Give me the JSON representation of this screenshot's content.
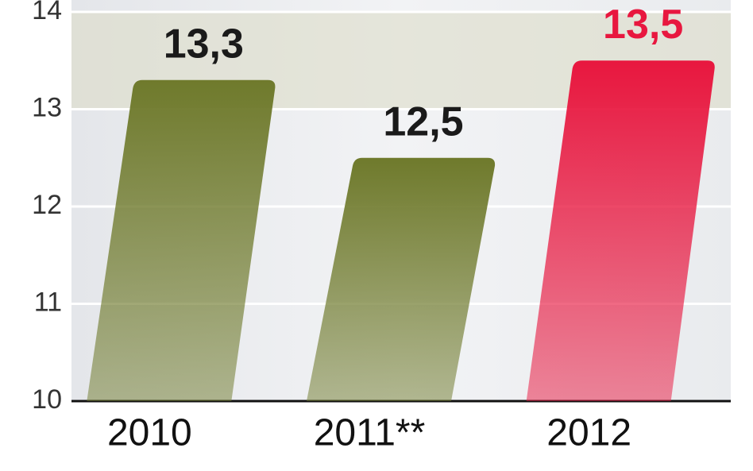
{
  "chart_data": {
    "type": "bar",
    "categories": [
      "2010",
      "2011**",
      "2012"
    ],
    "values": [
      13.3,
      12.5,
      13.5
    ],
    "value_labels": [
      "13,3",
      "12,5",
      "13,5"
    ],
    "colors": [
      "#6f7a2c",
      "#6f7a2c",
      "#e8173f"
    ],
    "ylim": [
      10,
      14
    ],
    "yticks": [
      10,
      11,
      12,
      13,
      14
    ],
    "grid": true
  }
}
